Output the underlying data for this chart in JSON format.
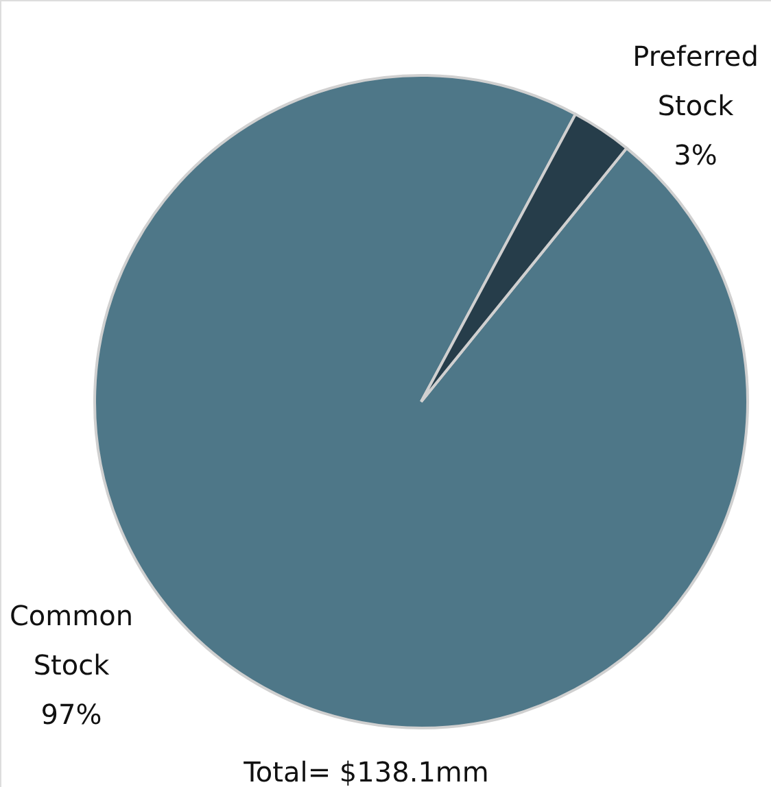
{
  "chart_data": {
    "type": "pie",
    "categories": [
      "Common Stock",
      "Preferred Stock"
    ],
    "values": [
      97,
      3
    ],
    "colors": [
      "#4e7788",
      "#263d4a"
    ],
    "value_labels": [
      "97%",
      "3%"
    ],
    "annotations": [
      "Total= $138.1mm"
    ]
  }
}
